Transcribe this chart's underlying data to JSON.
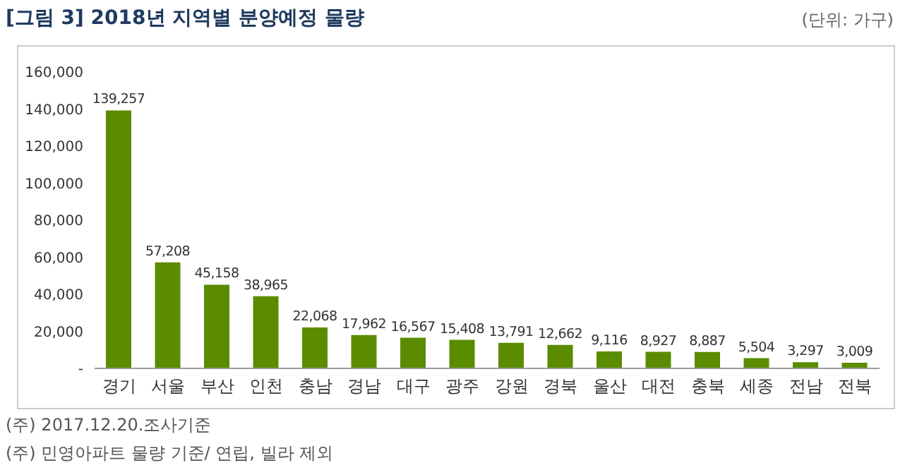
{
  "chart_data": {
    "type": "bar",
    "title": "[그림 3] 2018년 지역별 분양예정 물량",
    "subtitle": "(단위: 가구)",
    "categories": [
      "경기",
      "서울",
      "부산",
      "인천",
      "충남",
      "경남",
      "대구",
      "광주",
      "강원",
      "경북",
      "울산",
      "대전",
      "충북",
      "세종",
      "전남",
      "전북"
    ],
    "values": [
      139257,
      57208,
      45158,
      38965,
      22068,
      17962,
      16567,
      15408,
      13791,
      12662,
      9116,
      8927,
      8887,
      5504,
      3297,
      3009
    ],
    "value_labels": [
      "139,257",
      "57,208",
      "45,158",
      "38,965",
      "22,068",
      "17,962",
      "16,567",
      "15,408",
      "13,791",
      "12,662",
      "9,116",
      "8,927",
      "8,887",
      "5,504",
      "3,297",
      "3,009"
    ],
    "color": "#5b8c00",
    "ylim": [
      0,
      160000
    ],
    "yticks": [
      {
        "value": 0,
        "label": "-"
      },
      {
        "value": 20000,
        "label": "20,000"
      },
      {
        "value": 40000,
        "label": "40,000"
      },
      {
        "value": 60000,
        "label": "60,000"
      },
      {
        "value": 80000,
        "label": "80,000"
      },
      {
        "value": 100000,
        "label": "100,000"
      },
      {
        "value": 120000,
        "label": "120,000"
      },
      {
        "value": 140000,
        "label": "140,000"
      },
      {
        "value": 160000,
        "label": "160,000"
      }
    ],
    "grid": false,
    "legend": false,
    "annotations": [
      "(주) 2017.12.20.조사기준",
      "(주) 민영아파트 물량 기준/ 연립, 빌라 제외"
    ]
  }
}
